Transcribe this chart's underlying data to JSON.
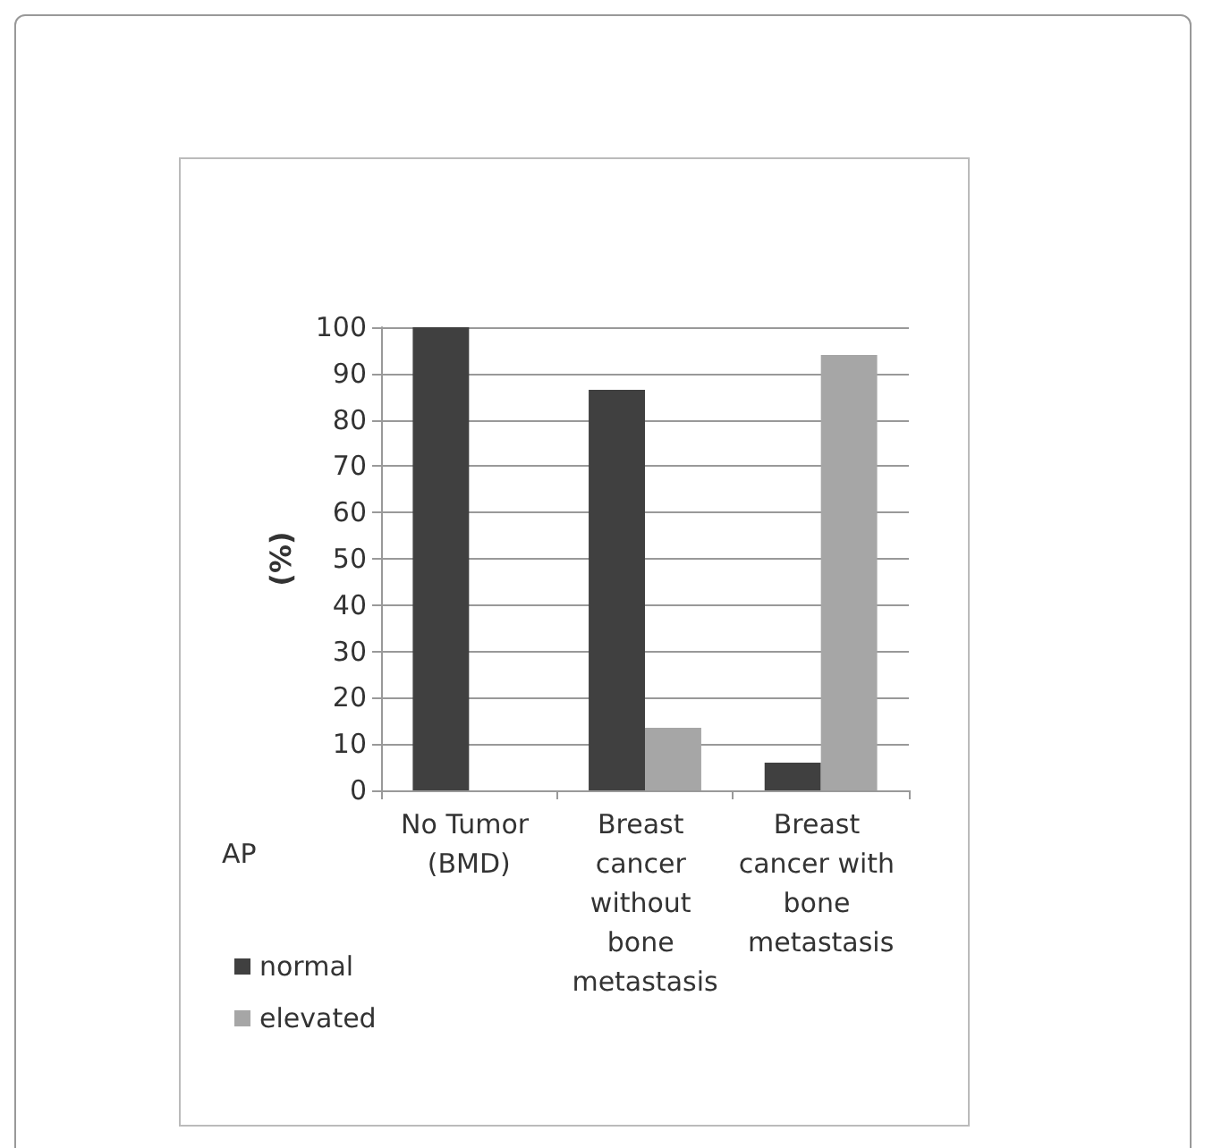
{
  "chart_data": {
    "type": "bar",
    "ylabel": "(%)",
    "legend_title": "AP",
    "categories": [
      "No Tumor (BMD)",
      "Breast cancer without bone metastasis",
      "Breast cancer with bone metastasis"
    ],
    "series": [
      {
        "name": "normal",
        "color": "#404040",
        "values": [
          100,
          86.5,
          6
        ]
      },
      {
        "name": "elevated",
        "color": "#a6a6a6",
        "values": [
          0,
          13.5,
          94
        ]
      }
    ],
    "ylim": [
      0,
      100
    ],
    "yticks": [
      0,
      10,
      20,
      30,
      40,
      50,
      60,
      70,
      80,
      90,
      100
    ],
    "grid": "y",
    "legend": "bottom left"
  }
}
